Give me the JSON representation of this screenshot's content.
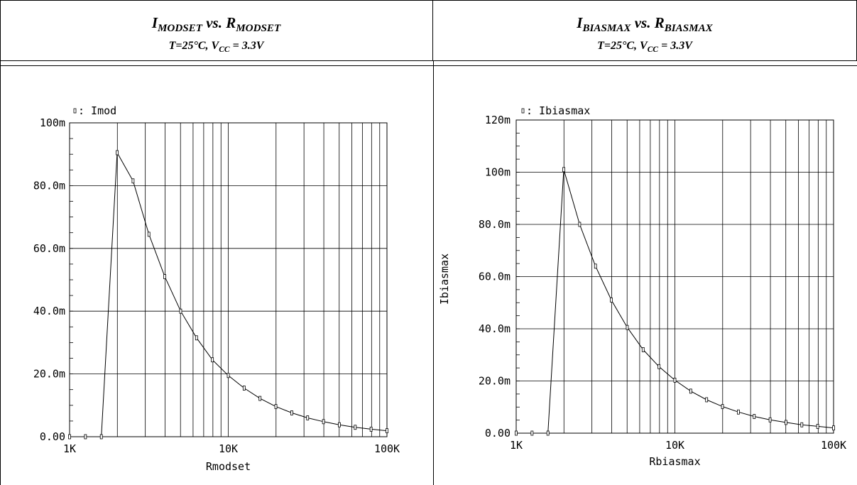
{
  "headers": [
    {
      "title_main": "I",
      "title_sub": "MODSET",
      "title_vs": " vs. R",
      "title_sub2": "MODSET",
      "cond_text": "T=25°C, V",
      "cond_sub": "CC",
      "cond_tail": " = 3.3V"
    },
    {
      "title_main": "I",
      "title_sub": "BIASMAX",
      "title_vs": " vs. R",
      "title_sub2": "BIASMAX",
      "cond_text": "T=25°C, V",
      "cond_sub": "CC",
      "cond_tail": " = 3.3V"
    }
  ],
  "chart_data": [
    {
      "type": "line",
      "title": "IMODSET vs. RMODSET",
      "subtitle": "T=25°C, VCC = 3.3V",
      "xlabel": "Rmodset",
      "ylabel": "",
      "xscale": "log",
      "xlim": [
        1000,
        100000
      ],
      "ylim": [
        0,
        0.1
      ],
      "x_ticks": [
        "1K",
        "10K",
        "100K"
      ],
      "y_ticks": [
        "0.00",
        "20.0m",
        "40.0m",
        "60.0m",
        "80.0m",
        "100m"
      ],
      "y_tick_values": [
        0,
        0.02,
        0.04,
        0.06,
        0.08,
        0.1
      ],
      "legend": "Imod",
      "grid": true,
      "series": [
        {
          "name": "Imod",
          "x": [
            1000,
            1259,
            1585,
            1995,
            2512,
            3162,
            3981,
            5012,
            6310,
            7943,
            10000,
            12589,
            15849,
            19953,
            25119,
            31623,
            39811,
            50119,
            63096,
            79433,
            100000
          ],
          "y": [
            0,
            0,
            0,
            0.0905,
            0.0815,
            0.0645,
            0.051,
            0.04,
            0.0315,
            0.0245,
            0.0195,
            0.0155,
            0.0122,
            0.0096,
            0.0076,
            0.006,
            0.0048,
            0.0038,
            0.003,
            0.0024,
            0.0019
          ]
        }
      ]
    },
    {
      "type": "line",
      "title": "IBIASMAX vs. RBIASMAX",
      "subtitle": "T=25°C, VCC = 3.3V",
      "xlabel": "Rbiasmax",
      "ylabel": "Ibiasmax",
      "xscale": "log",
      "xlim": [
        1000,
        100000
      ],
      "ylim": [
        0,
        0.12
      ],
      "x_ticks": [
        "1K",
        "10K",
        "100K"
      ],
      "y_ticks": [
        "0.00",
        "20.0m",
        "40.0m",
        "60.0m",
        "80.0m",
        "100m",
        "120m"
      ],
      "y_tick_values": [
        0,
        0.02,
        0.04,
        0.06,
        0.08,
        0.1,
        0.12
      ],
      "legend": "Ibiasmax",
      "grid": true,
      "series": [
        {
          "name": "Ibiasmax",
          "x": [
            1000,
            1259,
            1585,
            1995,
            2512,
            3162,
            3981,
            5012,
            6310,
            7943,
            10000,
            12589,
            15849,
            19953,
            25119,
            31623,
            39811,
            50119,
            63096,
            79433,
            100000
          ],
          "y": [
            0,
            0,
            0,
            0.101,
            0.08,
            0.064,
            0.051,
            0.0405,
            0.032,
            0.0255,
            0.0203,
            0.0161,
            0.0128,
            0.0102,
            0.0081,
            0.0064,
            0.0051,
            0.0041,
            0.0032,
            0.0026,
            0.002
          ]
        }
      ]
    }
  ]
}
